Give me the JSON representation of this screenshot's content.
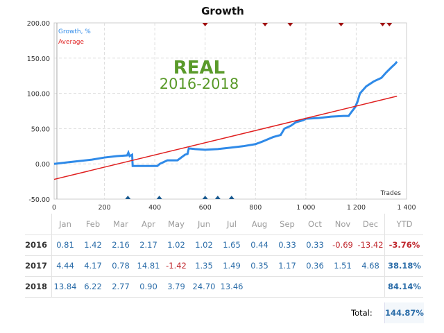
{
  "chart_data": {
    "type": "line",
    "title": "Growth",
    "xlabel": "Trades",
    "xlim": [
      0,
      1400
    ],
    "ylim": [
      -50,
      200
    ],
    "xticks": [
      "0",
      "200",
      "400",
      "600",
      "800",
      "1 000",
      "1 200",
      "1 400"
    ],
    "yticks": [
      "200.00",
      "150.00",
      "100.00",
      "50.00",
      "0.00",
      "-50.00"
    ],
    "grid": true,
    "legend": "top-left",
    "watermark": {
      "line1": "REAL",
      "line2": "2016-2018",
      "color": "#5a9a2a"
    },
    "series": [
      {
        "name": "Growth, %",
        "color": "#2f8ae8",
        "x": [
          0,
          50,
          100,
          150,
          200,
          250,
          290,
          295,
          300,
          310,
          312,
          350,
          410,
          420,
          450,
          490,
          520,
          530,
          535,
          560,
          600,
          650,
          700,
          750,
          800,
          830,
          870,
          900,
          915,
          940,
          960,
          990,
          1000,
          1050,
          1100,
          1150,
          1170,
          1180,
          1195,
          1205,
          1215,
          1240,
          1270,
          1300,
          1320,
          1340,
          1355,
          1362
        ],
        "y": [
          0,
          2,
          4,
          6,
          9,
          11,
          12,
          16,
          11,
          13,
          -3,
          -3,
          -3,
          0,
          5,
          5,
          13,
          14,
          22,
          21,
          20,
          21,
          23,
          25,
          28,
          32,
          38,
          41,
          50,
          54,
          59,
          62,
          64,
          65,
          67,
          68,
          68,
          73,
          80,
          88,
          100,
          110,
          117,
          122,
          130,
          137,
          142,
          145
        ]
      },
      {
        "name": "Average",
        "color": "#e02020",
        "x": [
          0,
          1362
        ],
        "y": [
          -22,
          96
        ]
      }
    ],
    "markers_down": [
      600,
      838,
      938,
      1140,
      1305,
      1332
    ],
    "markers_up": [
      293,
      418,
      600,
      650,
      705
    ]
  },
  "table": {
    "headers": [
      "Jan",
      "Feb",
      "Mar",
      "Apr",
      "May",
      "Jun",
      "Jul",
      "Aug",
      "Sep",
      "Oct",
      "Nov",
      "Dec",
      "YTD"
    ],
    "rows": [
      {
        "year": "2016",
        "values": [
          "0.81",
          "1.42",
          "2.16",
          "2.17",
          "1.02",
          "1.02",
          "1.65",
          "0.44",
          "0.33",
          "0.33",
          "-0.69",
          "-13.42"
        ],
        "ytd": "-3.76%"
      },
      {
        "year": "2017",
        "values": [
          "4.44",
          "4.17",
          "0.78",
          "14.81",
          "-1.42",
          "1.35",
          "1.49",
          "0.35",
          "1.17",
          "0.36",
          "1.51",
          "4.68"
        ],
        "ytd": "38.18%"
      },
      {
        "year": "2018",
        "values": [
          "13.84",
          "6.22",
          "2.77",
          "0.90",
          "3.79",
          "24.70",
          "13.46",
          "",
          "",
          "",
          "",
          ""
        ],
        "ytd": "84.14%"
      }
    ],
    "total_label": "Total:",
    "total_value": "144.87%"
  }
}
